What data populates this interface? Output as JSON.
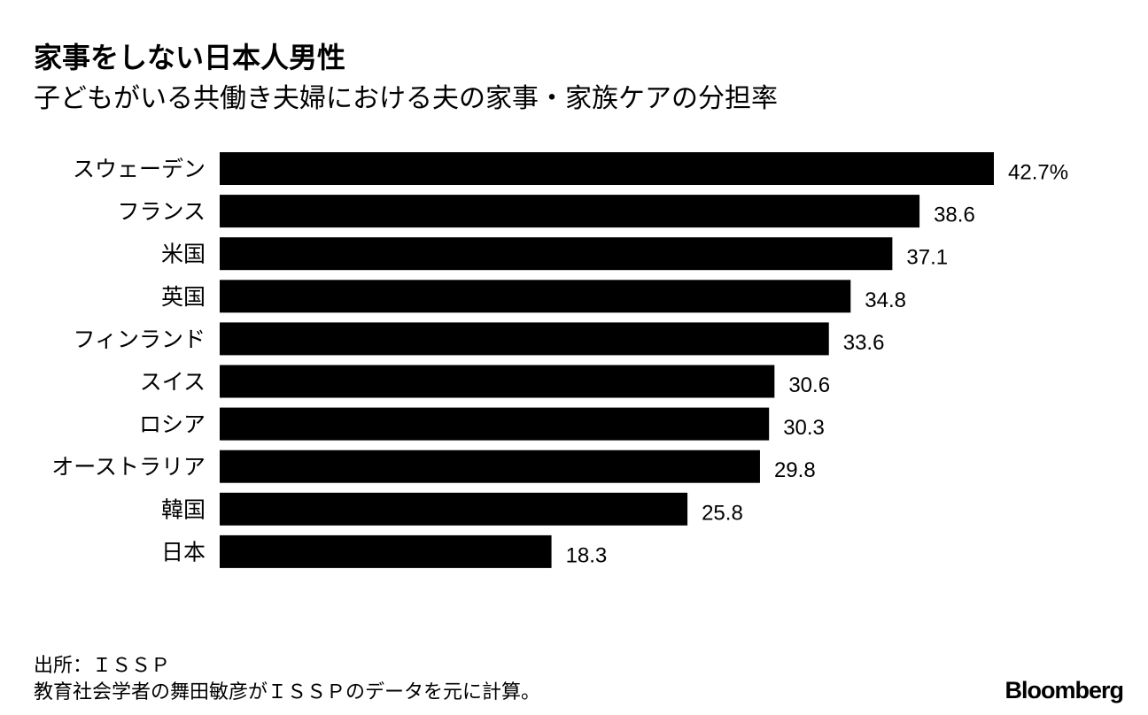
{
  "chart_data": {
    "type": "bar",
    "orientation": "horizontal",
    "title": "家事をしない日本人男性",
    "subtitle": "子どもがいる共働き夫婦における夫の家事・家族ケアの分担率",
    "categories": [
      "スウェーデン",
      "フランス",
      "米国",
      "英国",
      "フィンランド",
      "スイス",
      "ロシア",
      "オーストラリア",
      "韓国",
      "日本"
    ],
    "values": [
      42.7,
      38.6,
      37.1,
      34.8,
      33.6,
      30.6,
      30.3,
      29.8,
      25.8,
      18.3
    ],
    "value_labels": [
      "42.7%",
      "38.6",
      "37.1",
      "34.8",
      "33.6",
      "30.6",
      "30.3",
      "29.8",
      "25.8",
      "18.3"
    ],
    "unit": "%",
    "xlabel": "",
    "ylabel": "",
    "xlim": [
      0,
      42.7
    ],
    "grid": false,
    "bar_color": "#000000"
  },
  "footer": {
    "source": "出所：ＩＳＳＰ",
    "note": "教育社会学者の舞田敏彦がＩＳＳＰのデータを元に計算。",
    "logo": "Bloomberg"
  }
}
